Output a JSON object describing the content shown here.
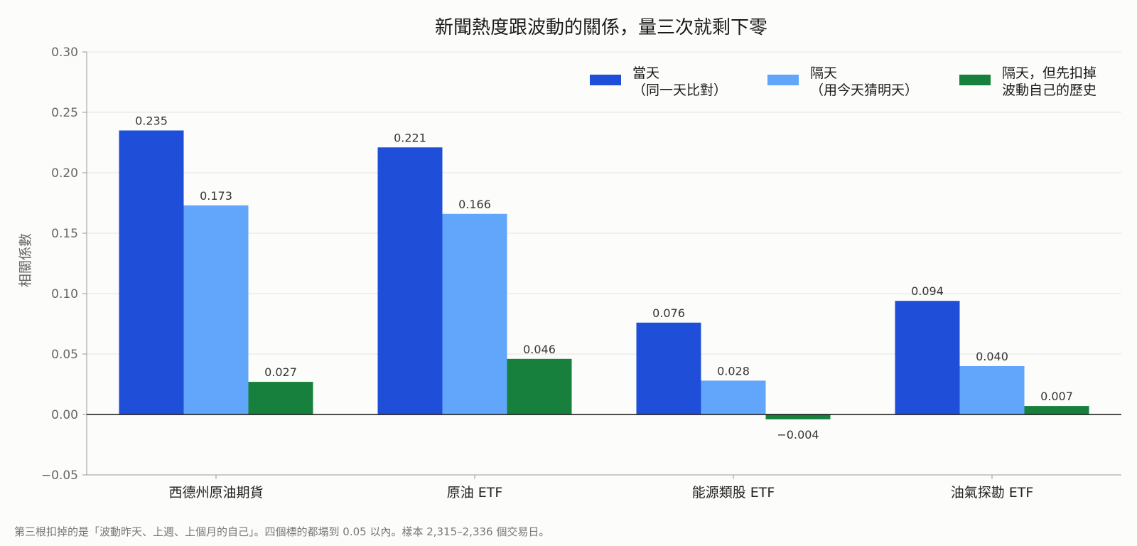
{
  "chart_data": {
    "type": "bar",
    "title": "新聞熱度跟波動的關係，量三次就剩下零",
    "ylabel": "相關係數",
    "xlabel": "",
    "ylim": [
      -0.05,
      0.3
    ],
    "yticks": [
      -0.05,
      0.0,
      0.05,
      0.1,
      0.15,
      0.2,
      0.25,
      0.3
    ],
    "ytick_labels": [
      "−0.05",
      "0.00",
      "0.05",
      "0.10",
      "0.15",
      "0.20",
      "0.25",
      "0.30"
    ],
    "categories": [
      "西德州原油期貨",
      "原油 ETF",
      "能源類股 ETF",
      "油氣探勘 ETF"
    ],
    "series": [
      {
        "name": "當天（同一天比對）",
        "legend_lines": [
          "當天",
          "（同一天比對）"
        ],
        "color": "#1f4fd8",
        "values": [
          0.235,
          0.221,
          0.076,
          0.094
        ],
        "labels": [
          "0.235",
          "0.221",
          "0.076",
          "0.094"
        ]
      },
      {
        "name": "隔天（用今天猜明天）",
        "legend_lines": [
          "隔天",
          "（用今天猜明天）"
        ],
        "color": "#62a6fb",
        "values": [
          0.173,
          0.166,
          0.028,
          0.04
        ],
        "labels": [
          "0.173",
          "0.166",
          "0.028",
          "0.040"
        ]
      },
      {
        "name": "隔天，但先扣掉波動自己的歷史",
        "legend_lines": [
          "隔天，但先扣掉",
          "波動自己的歷史"
        ],
        "color": "#16803c",
        "values": [
          0.027,
          0.046,
          -0.004,
          0.007
        ],
        "labels": [
          "0.027",
          "0.046",
          "−0.004",
          "0.007"
        ]
      }
    ],
    "grid": true,
    "legend_position": "top-right"
  },
  "footnote": "第三根扣掉的是「波動昨天、上週、上個月的自己」。四個標的都塌到 0.05 以內。樣本 2,315–2,336 個交易日。"
}
